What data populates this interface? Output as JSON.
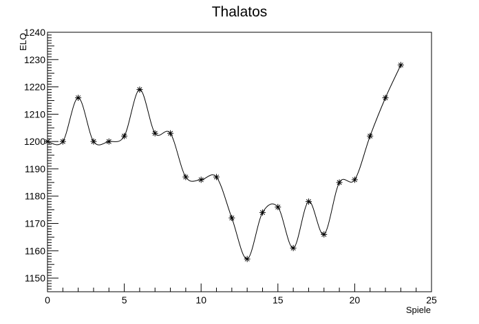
{
  "chart_data": {
    "type": "line",
    "title": "Thalatos",
    "xlabel": "Spiele",
    "ylabel": "ELO",
    "xlim": [
      0,
      25
    ],
    "ylim": [
      1145,
      1240
    ],
    "x_major_ticks": [
      0,
      5,
      10,
      15,
      20,
      25
    ],
    "y_major_ticks": [
      1150,
      1160,
      1170,
      1180,
      1190,
      1200,
      1210,
      1220,
      1230,
      1240
    ],
    "grid": false,
    "legend": "none",
    "marker": "asterisk",
    "smooth": true,
    "line_color": "#000000",
    "series": [
      {
        "x": [
          0,
          1,
          2,
          3,
          4,
          5,
          6,
          7,
          8,
          9,
          10,
          11,
          12,
          13,
          14,
          15,
          16,
          17,
          18,
          19,
          20,
          21,
          22,
          23
        ],
        "values": [
          1200,
          1200,
          1216,
          1200,
          1200,
          1202,
          1219,
          1203,
          1203,
          1187,
          1186,
          1187,
          1172,
          1157,
          1174,
          1176,
          1161,
          1178,
          1166,
          1185,
          1186,
          1202,
          1216,
          1228
        ]
      }
    ]
  }
}
